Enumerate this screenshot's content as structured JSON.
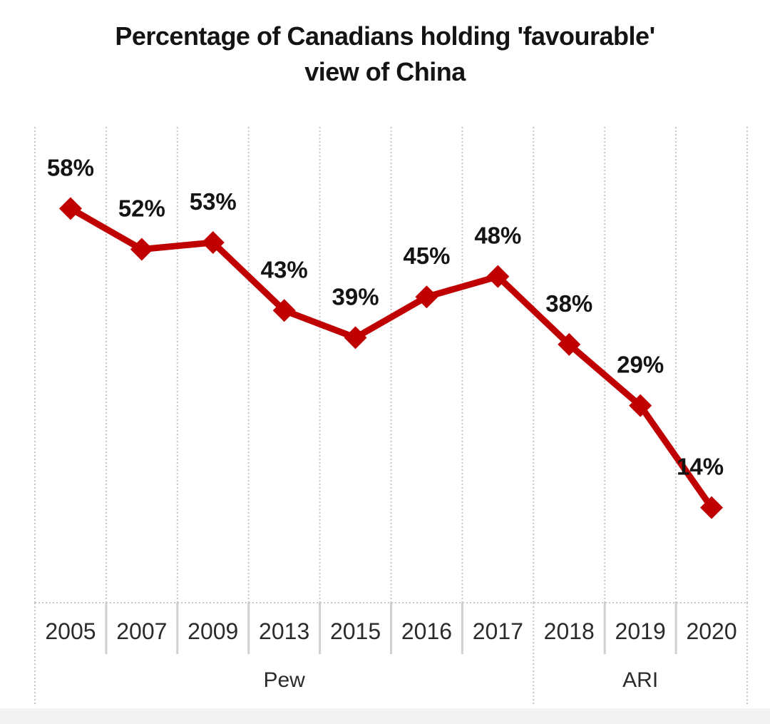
{
  "page": {
    "background": "#ffffff",
    "bottom_strip_color": "#f3f3f3"
  },
  "chart_data": {
    "type": "line",
    "title": "Percentage of Canadians holding 'favourable' view of China",
    "title_lines": [
      "Percentage of Canadians holding 'favourable'",
      "view of China"
    ],
    "categories": [
      "2005",
      "2007",
      "2009",
      "2013",
      "2015",
      "2016",
      "2017",
      "2018",
      "2019",
      "2020"
    ],
    "values": [
      58,
      52,
      53,
      43,
      39,
      45,
      48,
      38,
      29,
      14
    ],
    "data_labels": [
      "58%",
      "52%",
      "53%",
      "43%",
      "39%",
      "45%",
      "48%",
      "38%",
      "29%",
      "14%"
    ],
    "x_group_labels": [
      {
        "label": "Pew",
        "start": 0,
        "end": 6
      },
      {
        "label": "ARI",
        "start": 7,
        "end": 9
      }
    ],
    "ylim": [
      0,
      70
    ],
    "grid": "vertical-dashed",
    "legend": "none",
    "marker": "diamond",
    "colors": {
      "line": "#c00000",
      "marker": "#c00000",
      "grid": "#c7c7c7",
      "divider": "#d0d0d0",
      "label_text": "#141414",
      "axis_text": "#2b2b2b"
    },
    "label_offset": {
      "dy": -57,
      "last_dx": -16
    }
  }
}
